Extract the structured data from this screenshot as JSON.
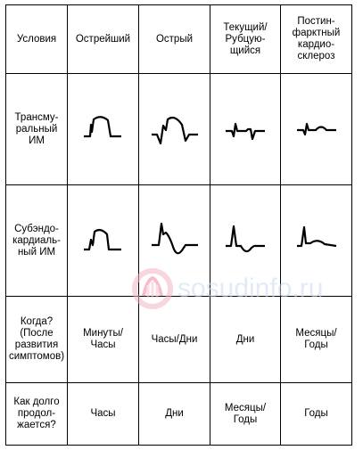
{
  "table": {
    "header": [
      "Условия",
      "Острейший",
      "Острый",
      "Текущий/\nРубцую-\nщийся",
      "Постин-\nфарктный\nкардио-\nсклероз"
    ],
    "rows": [
      {
        "label": "Трансму-\nральный\nИМ",
        "ecg": [
          "transmural-hyperacute",
          "transmural-acute",
          "transmural-healing",
          "transmural-chronic"
        ]
      },
      {
        "label": "Субэндо-\nкардиаль-\nный ИМ",
        "ecg": [
          "subendo-hyperacute",
          "subendo-acute",
          "subendo-healing",
          "subendo-chronic"
        ]
      },
      {
        "label": "Когда?\n(После\nразвития\nсимптомов)",
        "cells": [
          "Минуты/\nЧасы",
          "Часы/Дни",
          "Дни",
          "Месяцы/\nГоды"
        ]
      },
      {
        "label": "Как долго\nпродол-\nжается?",
        "cells": [
          "Часы",
          "Дни",
          "Месяцы/\nГоды",
          "Годы"
        ]
      }
    ]
  },
  "watermark": {
    "text": "sosudinfo.ru"
  }
}
